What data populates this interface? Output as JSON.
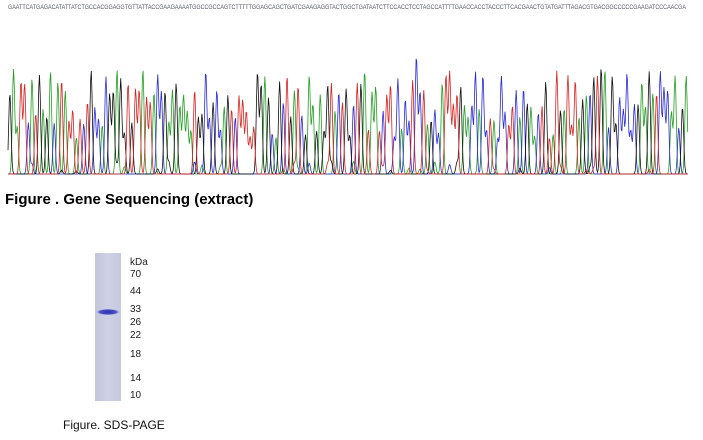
{
  "sequence": "GAATTCATGAGACATATTATCTGCCACGGAGGTGTTATTACCGAAGAAAATGGCCGCCAGTCTTTTTGGAGCAGCTGATCGAAGAGGTACTGGCTGATAATCTTCCACCTCCTAGCCATTTTGAACCACCTACCCTTCACGAACTGTATGATTTAGACGTGACGGCCCCCGAAGATCCCAACGA",
  "sequencing_caption": "Figure . Gene Sequencing (extract)",
  "gel": {
    "unit": "kDa",
    "markers": [
      70,
      44,
      33,
      26,
      22,
      18,
      14,
      10
    ]
  },
  "gel_caption": "Figure. SDS-PAGE"
}
